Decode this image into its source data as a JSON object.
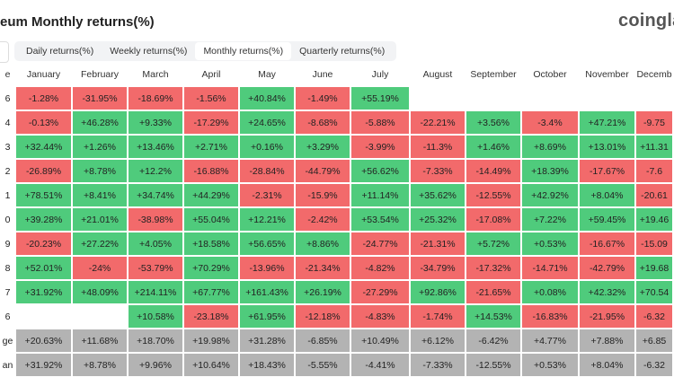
{
  "header": {
    "title": "eum Monthly returns(%)",
    "logo": "coinglas"
  },
  "tabs": {
    "items": [
      "Daily returns(%)",
      "Weekly returns(%)",
      "Monthly returns(%)",
      "Quarterly returns(%)"
    ],
    "selected": 2
  },
  "colors": {
    "positive": "#4fcb7c",
    "negative": "#f26a6b",
    "summary": "#b3b3b3"
  },
  "table": {
    "columns": [
      "e",
      "January",
      "February",
      "March",
      "April",
      "May",
      "June",
      "July",
      "August",
      "September",
      "October",
      "November",
      "Decemb"
    ],
    "rows": [
      {
        "label": "6",
        "cells": [
          "-1.28%",
          "-31.95%",
          "-18.69%",
          "-1.56%",
          "+40.84%",
          "-1.49%",
          "+55.19%",
          null,
          null,
          null,
          null,
          null
        ]
      },
      {
        "label": "4",
        "cells": [
          "-0.13%",
          "+46.28%",
          "+9.33%",
          "-17.29%",
          "+24.65%",
          "-8.68%",
          "-5.88%",
          "-22.21%",
          "+3.56%",
          "-3.4%",
          "+47.21%",
          "-9.75"
        ]
      },
      {
        "label": "3",
        "cells": [
          "+32.44%",
          "+1.26%",
          "+13.46%",
          "+2.71%",
          "+0.16%",
          "+3.29%",
          "-3.99%",
          "-11.3%",
          "+1.46%",
          "+8.69%",
          "+13.01%",
          "+11.31"
        ]
      },
      {
        "label": "2",
        "cells": [
          "-26.89%",
          "+8.78%",
          "+12.2%",
          "-16.88%",
          "-28.84%",
          "-44.79%",
          "+56.62%",
          "-7.33%",
          "-14.49%",
          "+18.39%",
          "-17.67%",
          "-7.6"
        ]
      },
      {
        "label": "1",
        "cells": [
          "+78.51%",
          "+8.41%",
          "+34.74%",
          "+44.29%",
          "-2.31%",
          "-15.9%",
          "+11.14%",
          "+35.62%",
          "-12.55%",
          "+42.92%",
          "+8.04%",
          "-20.61"
        ]
      },
      {
        "label": "0",
        "cells": [
          "+39.28%",
          "+21.01%",
          "-38.98%",
          "+55.04%",
          "+12.21%",
          "-2.42%",
          "+53.54%",
          "+25.32%",
          "-17.08%",
          "+7.22%",
          "+59.45%",
          "+19.46"
        ]
      },
      {
        "label": "9",
        "cells": [
          "-20.23%",
          "+27.22%",
          "+4.05%",
          "+18.58%",
          "+56.65%",
          "+8.86%",
          "-24.77%",
          "-21.31%",
          "+5.72%",
          "+0.53%",
          "-16.67%",
          "-15.09"
        ]
      },
      {
        "label": "8",
        "cells": [
          "+52.01%",
          "-24%",
          "-53.79%",
          "+70.29%",
          "-13.96%",
          "-21.34%",
          "-4.82%",
          "-34.79%",
          "-17.32%",
          "-14.71%",
          "-42.79%",
          "+19.68"
        ]
      },
      {
        "label": "7",
        "cells": [
          "+31.92%",
          "+48.09%",
          "+214.11%",
          "+67.77%",
          "+161.43%",
          "+26.19%",
          "-27.29%",
          "+92.86%",
          "-21.65%",
          "+0.08%",
          "+42.32%",
          "+70.54"
        ]
      },
      {
        "label": "6",
        "cells": [
          null,
          null,
          "+10.58%",
          "-23.18%",
          "+61.95%",
          "-12.18%",
          "-4.83%",
          "-1.74%",
          "+14.53%",
          "-16.83%",
          "-21.95%",
          "-6.32"
        ]
      },
      {
        "label": "ge",
        "summary": true,
        "cells": [
          "+20.63%",
          "+11.68%",
          "+18.70%",
          "+19.98%",
          "+31.28%",
          "-6.85%",
          "+10.49%",
          "+6.12%",
          "-6.42%",
          "+4.77%",
          "+7.88%",
          "+6.85"
        ]
      },
      {
        "label": "an",
        "summary": true,
        "cells": [
          "+31.92%",
          "+8.78%",
          "+9.96%",
          "+10.64%",
          "+18.43%",
          "-5.55%",
          "-4.41%",
          "-7.33%",
          "-12.55%",
          "+0.53%",
          "+8.04%",
          "-6.32"
        ]
      }
    ]
  }
}
